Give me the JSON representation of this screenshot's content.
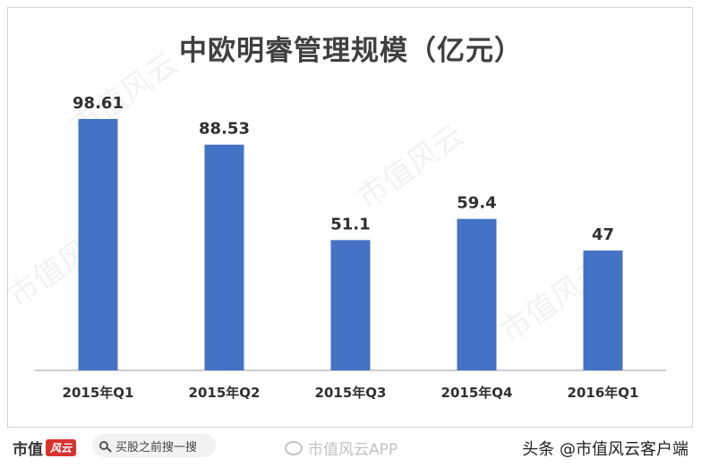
{
  "chart_data": {
    "type": "bar",
    "title": "中欧明睿管理规模（亿元）",
    "categories": [
      "2015年Q1",
      "2015年Q2",
      "2015年Q3",
      "2015年Q4",
      "2016年Q1"
    ],
    "values": [
      98.61,
      88.53,
      51.1,
      59.4,
      47
    ],
    "value_labels": [
      "98.61",
      "88.53",
      "51.1",
      "59.4",
      "47"
    ],
    "xlabel": "",
    "ylabel": "",
    "ylim": [
      0,
      100
    ],
    "grid": false,
    "legend": "none",
    "bar_color": "#4472c4"
  },
  "watermark": {
    "text": "市值风云"
  },
  "footer": {
    "brand_text": "市值",
    "brand_mark": "风云",
    "search_placeholder": "买股之前搜一搜",
    "weibo_text": "市值风云APP",
    "credit_text": "头条 @市值风云客户端"
  }
}
